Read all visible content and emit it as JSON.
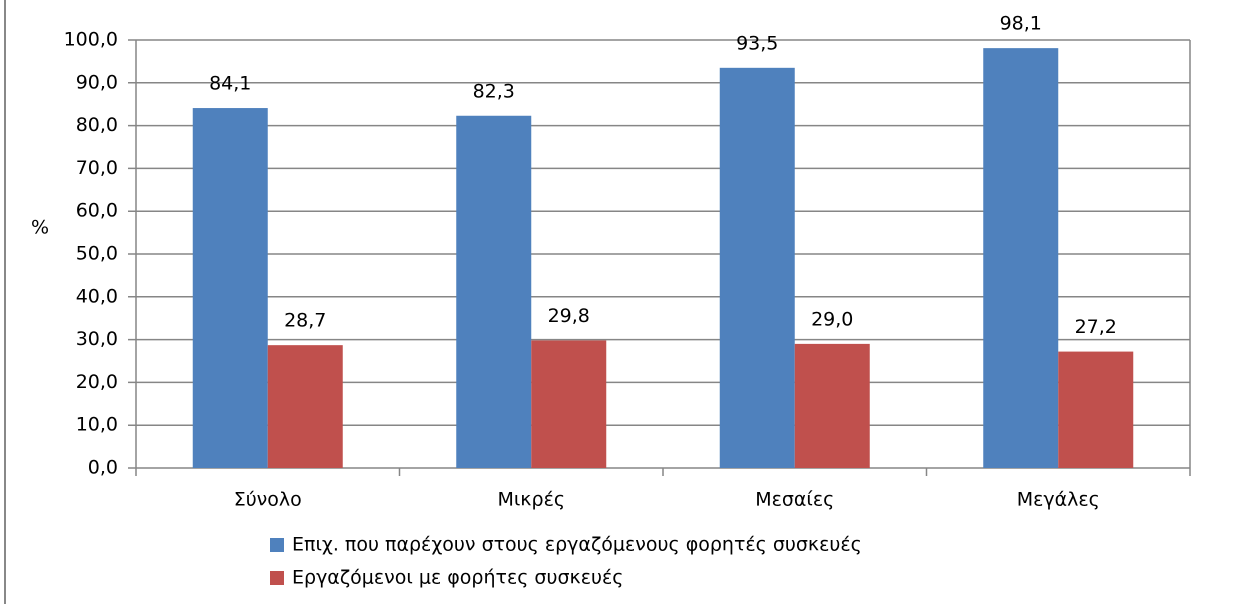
{
  "chart_data": {
    "type": "bar",
    "y_label": "%",
    "categories": [
      "Σύνολο",
      "Μικρές",
      "Μεσαίες",
      "Μεγάλες"
    ],
    "series": [
      {
        "name": "Επιχ. που παρέχουν στους εργαζόμενους φορητές συσκευές",
        "color": "#4f81bd",
        "values": [
          84.1,
          82.3,
          93.5,
          98.1
        ],
        "value_labels": [
          "84,1",
          "82,3",
          "93,5",
          "98,1"
        ]
      },
      {
        "name": "Εργαζόμενοι με φορήτες συσκευές",
        "color": "#c0504d",
        "values": [
          28.7,
          29.8,
          29.0,
          27.2
        ],
        "value_labels": [
          "28,7",
          "29,8",
          "29,0",
          "27,2"
        ]
      }
    ],
    "ylim": [
      0,
      100
    ],
    "yticks": [
      {
        "value": 0,
        "label": "0,0"
      },
      {
        "value": 10,
        "label": "10,0"
      },
      {
        "value": 20,
        "label": "20,0"
      },
      {
        "value": 30,
        "label": "30,0"
      },
      {
        "value": 40,
        "label": "40,0"
      },
      {
        "value": 50,
        "label": "50,0"
      },
      {
        "value": 60,
        "label": "60,0"
      },
      {
        "value": 70,
        "label": "70,0"
      },
      {
        "value": 80,
        "label": "80,0"
      },
      {
        "value": 90,
        "label": "90,0"
      },
      {
        "value": 100,
        "label": "100,0"
      }
    ],
    "grid": true
  }
}
